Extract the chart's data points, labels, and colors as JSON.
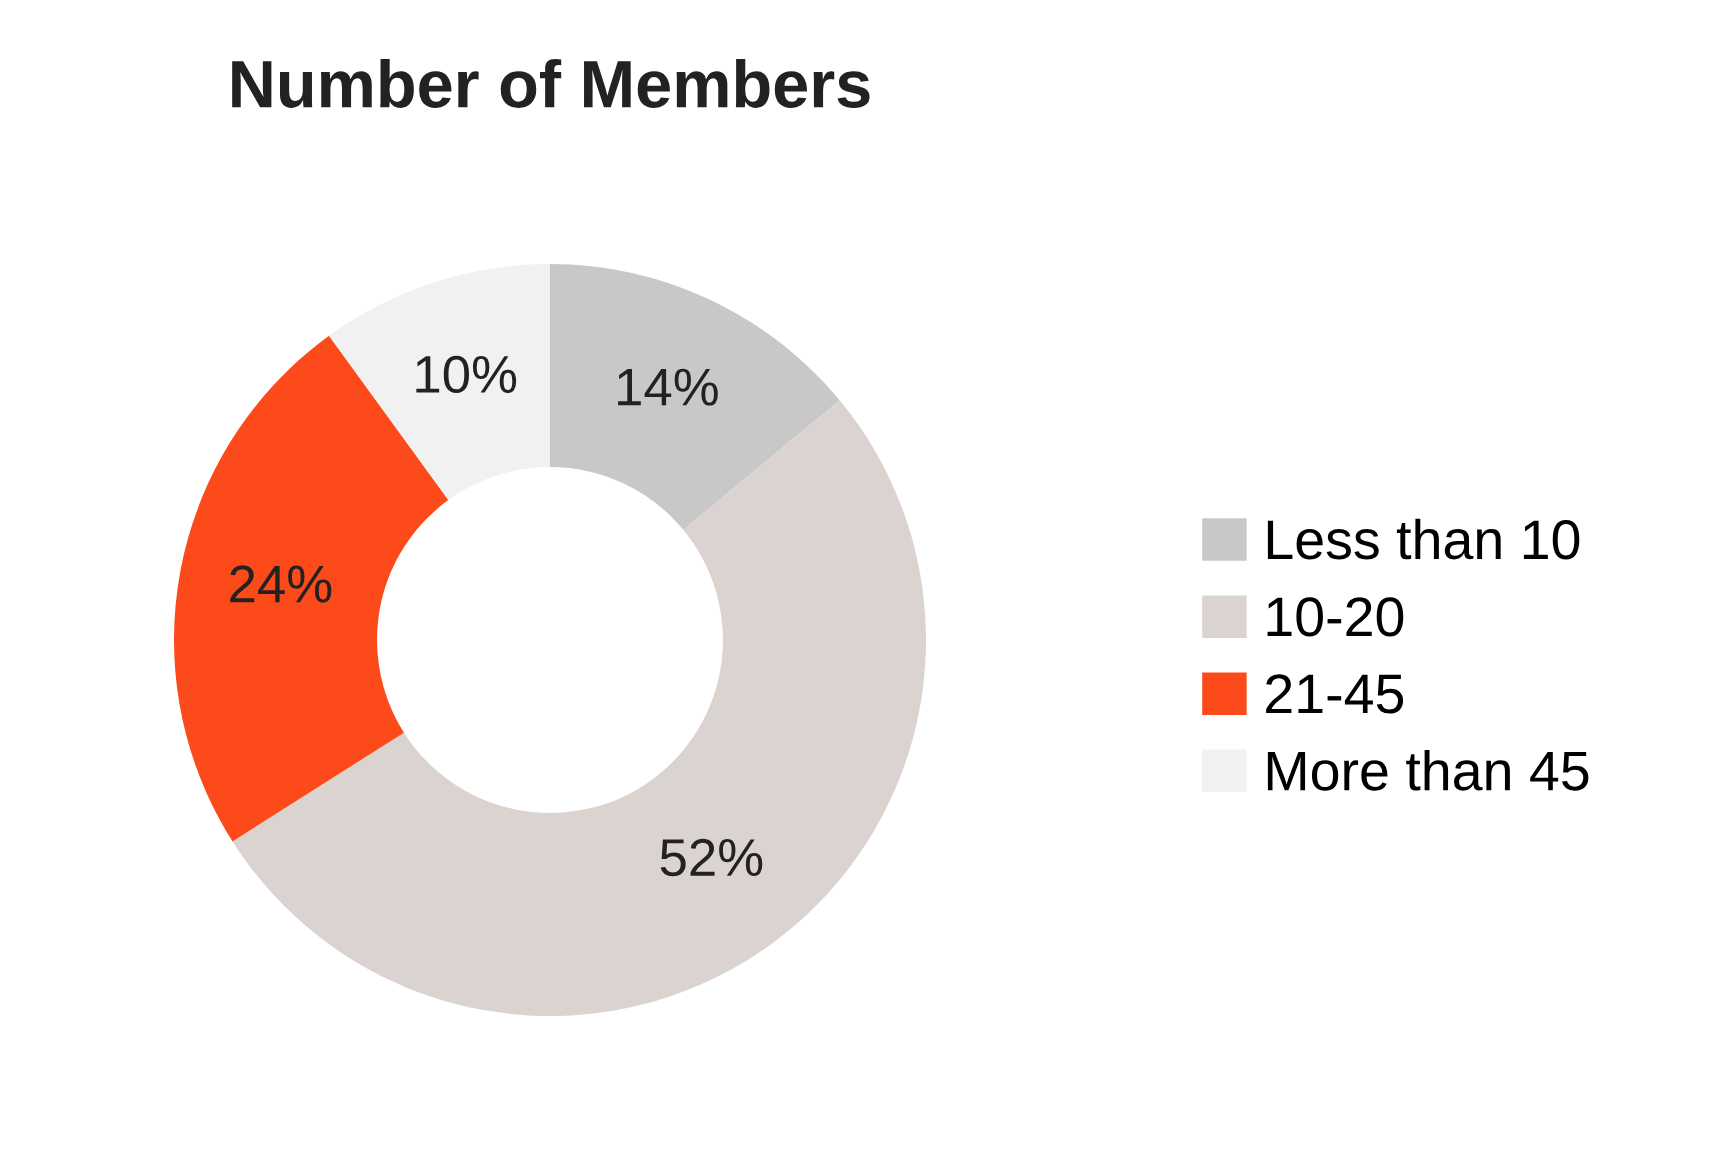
{
  "chart_data": {
    "type": "donut",
    "title": "Number of Members",
    "categories": [
      "Less than 10",
      "10-20",
      "21-45",
      "More than 45"
    ],
    "values": [
      14,
      52,
      24,
      10
    ],
    "colors": [
      "#c8c8c8",
      "#dbd3cf",
      "#fc4a1a",
      "#f1f1f1"
    ],
    "value_labels": [
      "14%",
      "52%",
      "24%",
      "10%"
    ],
    "legend": "right"
  }
}
